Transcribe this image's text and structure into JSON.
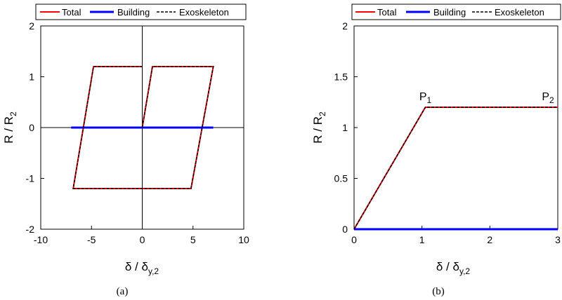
{
  "colors": {
    "total": "#ff0000",
    "building": "#0000ff",
    "exoskeleton": "#000000"
  },
  "legend": {
    "total": "Total",
    "building": "Building",
    "exoskeleton": "Exoskeleton"
  },
  "panels": {
    "a": {
      "label": "(a)",
      "ylabel_main": "R / R",
      "ylabel_sub": "2",
      "xlabel_main": "δ / δ",
      "xlabel_sub": "y,2"
    },
    "b": {
      "label": "(b)",
      "ylabel_main": "R / R",
      "ylabel_sub": "2",
      "xlabel_main": "δ / δ",
      "xlabel_sub": "y,2"
    }
  },
  "chart_data": [
    {
      "type": "line",
      "panel": "a",
      "xlim": [
        -10,
        10
      ],
      "ylim": [
        -2,
        2
      ],
      "xticks": [
        -10,
        -5,
        0,
        5,
        10
      ],
      "yticks": [
        -2,
        -1,
        0,
        1,
        2
      ],
      "xtick_labels": [
        "-10",
        "-5",
        "0",
        "5",
        "10"
      ],
      "ytick_labels": [
        "-2",
        "-1",
        "0",
        "1",
        "2"
      ],
      "zero_lines": true,
      "legend_position": "top",
      "series": [
        {
          "name": "Total",
          "style": "solid",
          "color": "#ff0000",
          "x": [
            0,
            1,
            7,
            4.8,
            -6.8,
            -4.8,
            0
          ],
          "y": [
            0,
            1.2,
            1.2,
            -1.2,
            -1.2,
            1.2,
            1.2
          ]
        },
        {
          "name": "Building",
          "style": "solid",
          "color": "#0000ff",
          "x": [
            -7,
            7
          ],
          "y": [
            0,
            0
          ]
        },
        {
          "name": "Exoskeleton",
          "style": "dashed",
          "color": "#000000",
          "x": [
            0,
            1,
            7,
            4.8,
            -6.8,
            -4.8,
            0
          ],
          "y": [
            0,
            1.2,
            1.2,
            -1.2,
            -1.2,
            1.2,
            1.2
          ]
        }
      ]
    },
    {
      "type": "line",
      "panel": "b",
      "xlim": [
        0,
        3
      ],
      "ylim": [
        0,
        2
      ],
      "xticks": [
        0,
        1,
        2,
        3
      ],
      "yticks": [
        0,
        0.5,
        1,
        1.5,
        2
      ],
      "xtick_labels": [
        "0",
        "1",
        "2",
        "3"
      ],
      "ytick_labels": [
        "0",
        "0.5",
        "1",
        "1.5",
        "2"
      ],
      "zero_lines": false,
      "legend_position": "top",
      "series": [
        {
          "name": "Total",
          "style": "solid",
          "color": "#ff0000",
          "x": [
            0,
            1.05,
            3
          ],
          "y": [
            0,
            1.2,
            1.2
          ]
        },
        {
          "name": "Building",
          "style": "solid",
          "color": "#0000ff",
          "x": [
            0,
            3
          ],
          "y": [
            0,
            0
          ]
        },
        {
          "name": "Exoskeleton",
          "style": "dashed",
          "color": "#000000",
          "x": [
            0,
            1.05,
            3
          ],
          "y": [
            0,
            1.2,
            1.2
          ]
        }
      ],
      "annotations": [
        {
          "main": "P",
          "sub": "1",
          "x": 1.05,
          "y": 1.2
        },
        {
          "main": "P",
          "sub": "2",
          "x": 3,
          "y": 1.2
        }
      ]
    }
  ]
}
